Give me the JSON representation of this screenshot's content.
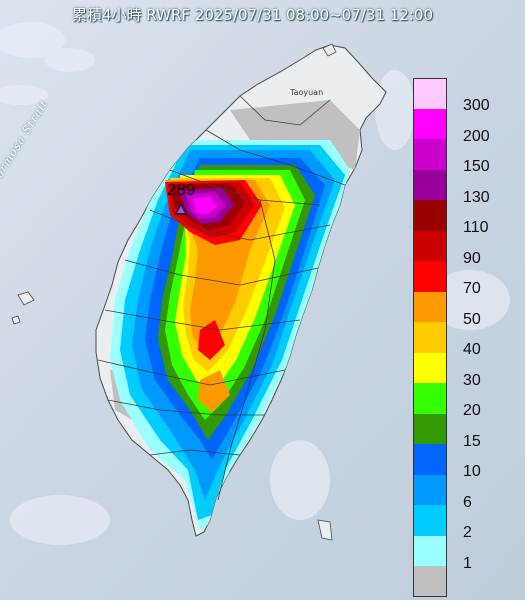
{
  "map": {
    "title": "累積4小時 RWRF 2025/07/31 08:00~07/31 12:00",
    "strait_label": "Formosa Strait",
    "city_label": "Taoyuan",
    "peak_value": "289"
  },
  "legend": {
    "items": [
      {
        "label": "300",
        "color": "#ffc8ff"
      },
      {
        "label": "200",
        "color": "#ff00ff"
      },
      {
        "label": "150",
        "color": "#cc00cc"
      },
      {
        "label": "130",
        "color": "#990099"
      },
      {
        "label": "110",
        "color": "#990000"
      },
      {
        "label": "90",
        "color": "#cc0000"
      },
      {
        "label": "70",
        "color": "#ff0000"
      },
      {
        "label": "50",
        "color": "#ff9900"
      },
      {
        "label": "40",
        "color": "#ffcc00"
      },
      {
        "label": "30",
        "color": "#ffff00"
      },
      {
        "label": "20",
        "color": "#33ff00"
      },
      {
        "label": "15",
        "color": "#339900"
      },
      {
        "label": "10",
        "color": "#0066ff"
      },
      {
        "label": "6",
        "color": "#0099ff"
      },
      {
        "label": "2",
        "color": "#00ccff"
      },
      {
        "label": "1",
        "color": "#99ffff"
      },
      {
        "label": "",
        "color": "#c0c0c0"
      }
    ]
  },
  "colors": {
    "sea": "#cfd9e6",
    "land": "#e9ecef"
  }
}
